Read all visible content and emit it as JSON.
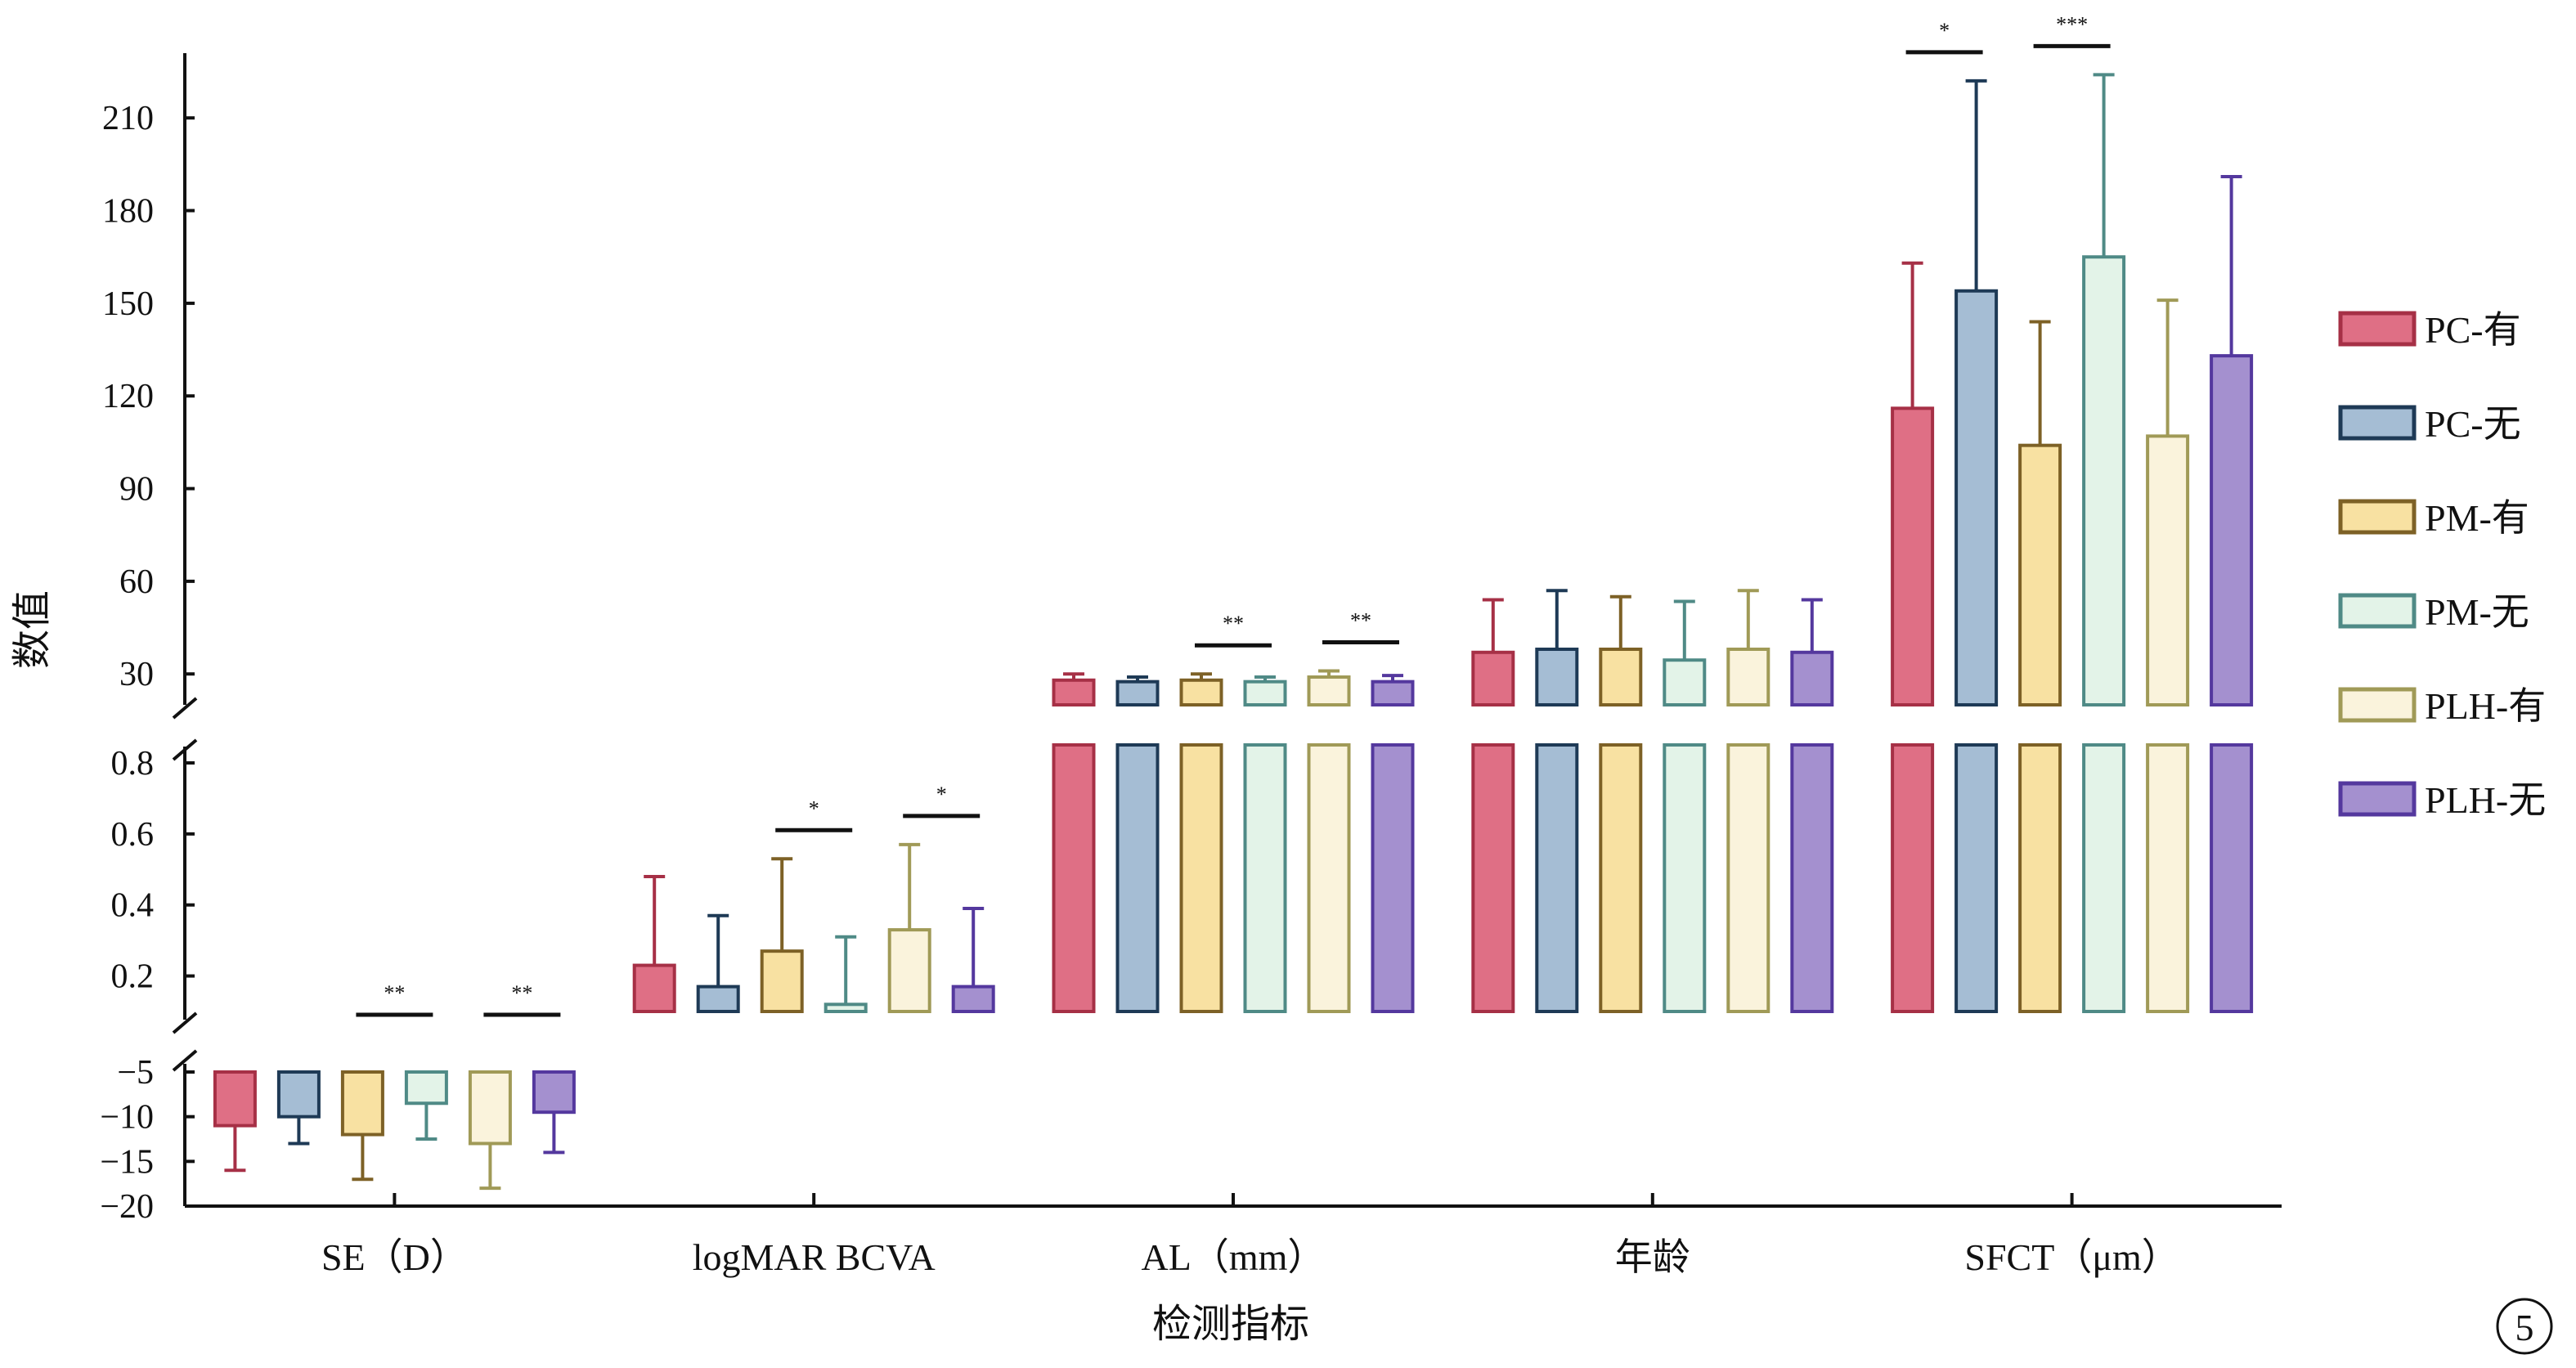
{
  "chart_data": {
    "type": "bar",
    "xlabel": "检测指标",
    "ylabel": "数值",
    "categories": [
      "SE（D）",
      "logMAR BCVA",
      "AL（mm）",
      "年龄",
      "SFCT（μm）"
    ],
    "series": [
      {
        "name": "PC-有",
        "fill": "#DF6F85",
        "stroke": "#A63046",
        "values": [
          -11,
          0.23,
          28,
          37,
          116
        ],
        "errors": [
          5,
          0.25,
          2,
          17,
          47
        ]
      },
      {
        "name": "PC-无",
        "fill": "#A5BDD4",
        "stroke": "#1E3A56",
        "values": [
          -10,
          0.17,
          27.5,
          38,
          154
        ],
        "errors": [
          3,
          0.2,
          1.5,
          19,
          68
        ]
      },
      {
        "name": "PM-有",
        "fill": "#F8E1A2",
        "stroke": "#7D6126",
        "values": [
          -12,
          0.27,
          28,
          38,
          104
        ],
        "errors": [
          5,
          0.26,
          2,
          17,
          40
        ]
      },
      {
        "name": "PM-无",
        "fill": "#E3F3E8",
        "stroke": "#4F8A86",
        "values": [
          -8.5,
          0.12,
          27.5,
          34.5,
          165
        ],
        "errors": [
          4,
          0.19,
          1.5,
          19,
          59
        ]
      },
      {
        "name": "PLH-有",
        "fill": "#FAF3DC",
        "stroke": "#A09A57",
        "values": [
          -13,
          0.33,
          29,
          38,
          107
        ],
        "errors": [
          5,
          0.24,
          2,
          19,
          44
        ]
      },
      {
        "name": "PLH-无",
        "fill": "#A490CF",
        "stroke": "#54389E",
        "values": [
          -9.5,
          0.17,
          27.5,
          37,
          133
        ],
        "errors": [
          4.5,
          0.22,
          2,
          17,
          58
        ]
      }
    ],
    "y_segments": [
      {
        "range": [
          -20,
          -5
        ],
        "ticks": [
          "−5",
          "−10",
          "−15",
          "−20"
        ]
      },
      {
        "range": [
          0.1,
          0.8
        ],
        "ticks": [
          "0.2",
          "0.4",
          "0.6",
          "0.8"
        ]
      },
      {
        "range": [
          20,
          230
        ],
        "ticks": [
          "30",
          "60",
          "90",
          "120",
          "150",
          "180",
          "210"
        ]
      }
    ],
    "significance": [
      {
        "category": "SE（D）",
        "label": "**",
        "pair": [
          2,
          3
        ]
      },
      {
        "category": "SE（D）",
        "label": "**",
        "pair": [
          4,
          5
        ]
      },
      {
        "category": "logMAR BCVA",
        "label": "*",
        "pair": [
          2,
          3
        ]
      },
      {
        "category": "logMAR BCVA",
        "label": "*",
        "pair": [
          4,
          5
        ]
      },
      {
        "category": "AL（mm）",
        "label": "**",
        "pair": [
          2,
          3
        ]
      },
      {
        "category": "AL（mm）",
        "label": "**",
        "pair": [
          4,
          5
        ]
      },
      {
        "category": "SFCT（μm）",
        "label": "*",
        "pair": [
          0,
          1
        ]
      },
      {
        "category": "SFCT（μm）",
        "label": "***",
        "pair": [
          2,
          3
        ]
      }
    ],
    "legend_position": "right",
    "grid": false,
    "panel_label": "5"
  }
}
